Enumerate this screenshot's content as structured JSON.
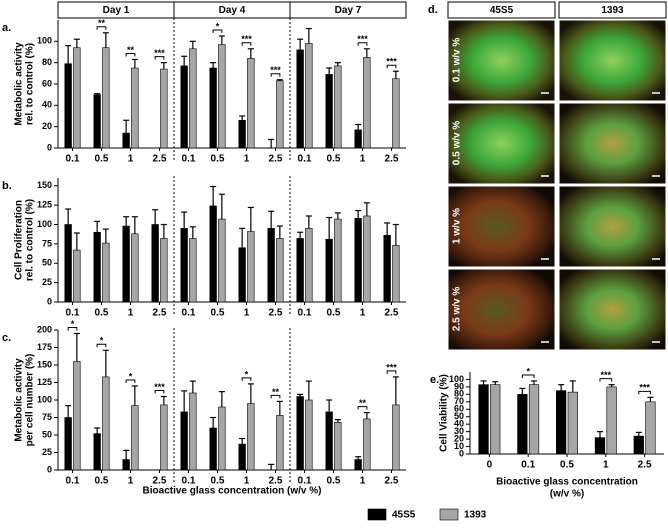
{
  "legend": [
    {
      "name": "45S5",
      "color": "#000000"
    },
    {
      "name": "1393",
      "color": "#a6a6a6"
    }
  ],
  "day_headers": [
    "Day 1",
    "Day 4",
    "Day 7"
  ],
  "xlabel": "Bioactive glass concentration (w/v %)",
  "chart_data": [
    {
      "type": "bar",
      "panel": "a.",
      "ylabel": [
        "Metabolic activity",
        "rel. to control (%)"
      ],
      "ylim": [
        0,
        120
      ],
      "yticks": [
        0,
        20,
        40,
        60,
        80,
        100
      ],
      "categories": [
        "0.1",
        "0.5",
        "1",
        "2.5"
      ],
      "groups": [
        {
          "series": [
            {
              "values": [
                79,
                50,
                14,
                0
              ],
              "errors": [
                17,
                1,
                12,
                0
              ]
            },
            {
              "values": [
                94,
                94,
                75,
                74
              ],
              "errors": [
                8,
                14,
                8,
                6
              ]
            }
          ],
          "significance": [
            null,
            "**",
            "**",
            "***"
          ]
        },
        {
          "series": [
            {
              "values": [
                77,
                75,
                26,
                0
              ],
              "errors": [
                9,
                5,
                4,
                8
              ]
            },
            {
              "values": [
                93,
                97,
                84,
                63
              ],
              "errors": [
                7,
                8,
                9,
                1
              ]
            }
          ],
          "significance": [
            null,
            "*",
            "***",
            "***"
          ]
        },
        {
          "series": [
            {
              "values": [
                92,
                69,
                17,
                0
              ],
              "errors": [
                10,
                6,
                5,
                0
              ]
            },
            {
              "values": [
                98,
                77,
                85,
                65
              ],
              "errors": [
                14,
                3,
                8,
                7
              ]
            }
          ],
          "significance": [
            null,
            null,
            "***",
            "***"
          ]
        }
      ]
    },
    {
      "type": "bar",
      "panel": "b.",
      "ylabel": [
        "Cell Proliferation",
        "rel. to control (%)"
      ],
      "ylim": [
        0,
        160
      ],
      "yticks": [
        0,
        25,
        50,
        75,
        100,
        125,
        150
      ],
      "categories": [
        "0.1",
        "0.5",
        "1",
        "2.5"
      ],
      "groups": [
        {
          "series": [
            {
              "values": [
                100,
                90,
                98,
                100
              ],
              "errors": [
                20,
                14,
                12,
                19
              ]
            },
            {
              "values": [
                67,
                76,
                88,
                82
              ],
              "errors": [
                22,
                18,
                22,
                18
              ]
            }
          ],
          "significance": [
            null,
            null,
            null,
            null
          ]
        },
        {
          "series": [
            {
              "values": [
                95,
                124,
                70,
                95
              ],
              "errors": [
                21,
                25,
                25,
                22
              ]
            },
            {
              "values": [
                82,
                107,
                91,
                82
              ],
              "errors": [
                15,
                32,
                31,
                16
              ]
            }
          ],
          "significance": [
            null,
            null,
            null,
            null
          ]
        },
        {
          "series": [
            {
              "values": [
                82,
                81,
                108,
                86
              ],
              "errors": [
                8,
                28,
                10,
                16
              ]
            },
            {
              "values": [
                95,
                107,
                111,
                73
              ],
              "errors": [
                16,
                8,
                17,
                27
              ]
            }
          ],
          "significance": [
            null,
            null,
            null,
            null
          ]
        }
      ]
    },
    {
      "type": "bar",
      "panel": "c.",
      "ylabel": [
        "Metabolic activity",
        "per cell number (%)"
      ],
      "ylim": [
        0,
        200
      ],
      "yticks": [
        0,
        25,
        50,
        75,
        100,
        125,
        150,
        175,
        200
      ],
      "categories": [
        "0.1",
        "0.5",
        "1",
        "2.5"
      ],
      "groups": [
        {
          "series": [
            {
              "values": [
                75,
                52,
                15,
                0
              ],
              "errors": [
                17,
                8,
                13,
                0
              ]
            },
            {
              "values": [
                155,
                133,
                92,
                93
              ],
              "errors": [
                40,
                38,
                28,
                12
              ]
            }
          ],
          "significance": [
            "*",
            "*",
            "*",
            "***"
          ]
        },
        {
          "series": [
            {
              "values": [
                83,
                60,
                37,
                0
              ],
              "errors": [
                30,
                15,
                8,
                8
              ]
            },
            {
              "values": [
                110,
                90,
                95,
                78
              ],
              "errors": [
                17,
                22,
                28,
                20
              ]
            }
          ],
          "significance": [
            null,
            null,
            "*",
            "**"
          ]
        },
        {
          "series": [
            {
              "values": [
                105,
                83,
                15,
                0
              ],
              "errors": [
                3,
                17,
                4,
                0
              ]
            },
            {
              "values": [
                100,
                68,
                73,
                93
              ],
              "errors": [
                27,
                4,
                9,
                40
              ]
            }
          ],
          "significance": [
            null,
            null,
            "**",
            "***"
          ]
        }
      ]
    },
    {
      "type": "bar",
      "panel": "e.",
      "ylabel": [
        "Cell Viability (%)"
      ],
      "xlabel": [
        "Bioactive glass concentration",
        "(w/v %)"
      ],
      "ylim": [
        0,
        110
      ],
      "yticks": [
        0,
        10,
        20,
        30,
        40,
        50,
        60,
        70,
        80,
        90,
        100
      ],
      "categories": [
        "0",
        "0.1",
        "0.5",
        "1",
        "2.5"
      ],
      "groups": [
        {
          "series": [
            {
              "values": [
                93,
                80,
                85,
                22,
                24
              ],
              "errors": [
                5,
                8,
                8,
                8,
                5
              ]
            },
            {
              "values": [
                93,
                93,
                83,
                90,
                70
              ],
              "errors": [
                4,
                5,
                15,
                3,
                6
              ]
            }
          ],
          "significance": [
            null,
            "*",
            null,
            "***",
            "***"
          ]
        }
      ]
    }
  ],
  "images": {
    "panel": "d.",
    "columns": [
      "45S5",
      "1393"
    ],
    "rows": [
      "0.1 w/v %",
      "0.5 w/v %",
      "1 w/v %",
      "2.5 w/v %"
    ]
  }
}
